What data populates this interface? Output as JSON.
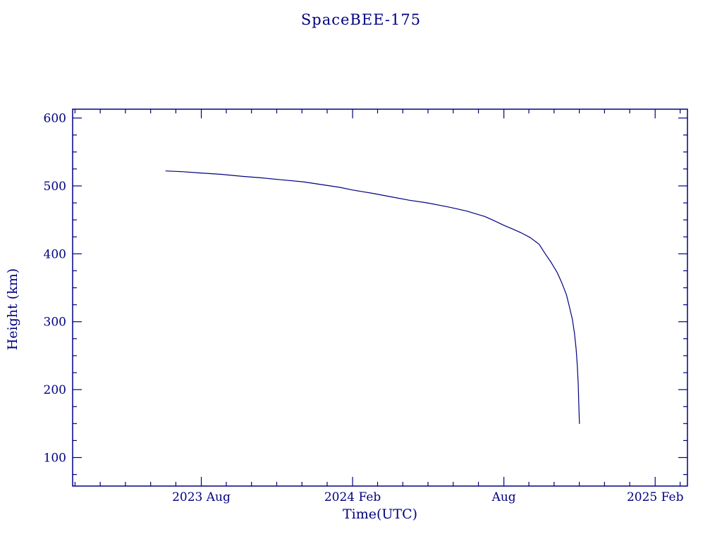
{
  "page": {
    "background": "#ffffff",
    "accent": "#000080"
  },
  "chart": {
    "title": "SpaceBEE-175",
    "xlabel": "Time(UTC)",
    "ylabel": "Height (km)"
  },
  "chart_data": {
    "type": "line",
    "title": "SpaceBEE-175",
    "xlabel": "Time(UTC)",
    "ylabel": "Height (km)",
    "x_unit": "decimal_year",
    "xlim": [
      2023.158,
      2025.19
    ],
    "ylim": [
      58,
      613
    ],
    "grid": false,
    "legend": "none",
    "line_color": "#000080",
    "axis_color": "#000080",
    "xticks": [
      {
        "value": 2023.5833,
        "label": "2023 Aug"
      },
      {
        "value": 2024.0833,
        "label": "2024 Feb"
      },
      {
        "value": 2024.5833,
        "label": "Aug"
      },
      {
        "value": 2025.0833,
        "label": "2025 Feb"
      }
    ],
    "yticks": [
      {
        "value": 100,
        "label": "100"
      },
      {
        "value": 200,
        "label": "200"
      },
      {
        "value": 300,
        "label": "300"
      },
      {
        "value": 400,
        "label": "400"
      },
      {
        "value": 500,
        "label": "500"
      },
      {
        "value": 600,
        "label": "600"
      }
    ],
    "x_minor_step": 0.0833333,
    "y_minor_step": 25,
    "series": [
      {
        "name": "height",
        "x": [
          2023.466,
          2023.52,
          2023.583,
          2023.65,
          2023.72,
          2023.78,
          2023.85,
          2023.92,
          2023.98,
          2024.04,
          2024.083,
          2024.15,
          2024.21,
          2024.27,
          2024.33,
          2024.4,
          2024.46,
          2024.52,
          2024.55,
          2024.583,
          2024.61,
          2024.64,
          2024.67,
          2024.7,
          2024.72,
          2024.74,
          2024.76,
          2024.775,
          2024.79,
          2024.8,
          2024.81,
          2024.817,
          2024.822,
          2024.826,
          2024.829,
          2024.831,
          2024.833
        ],
        "y": [
          522,
          521,
          519,
          517,
          514,
          512,
          509,
          506,
          502,
          498,
          494,
          489,
          484,
          479,
          475,
          469,
          463,
          455,
          449,
          442,
          437,
          431,
          424,
          414,
          400,
          387,
          372,
          357,
          340,
          322,
          303,
          282,
          260,
          235,
          208,
          178,
          150
        ]
      }
    ]
  }
}
